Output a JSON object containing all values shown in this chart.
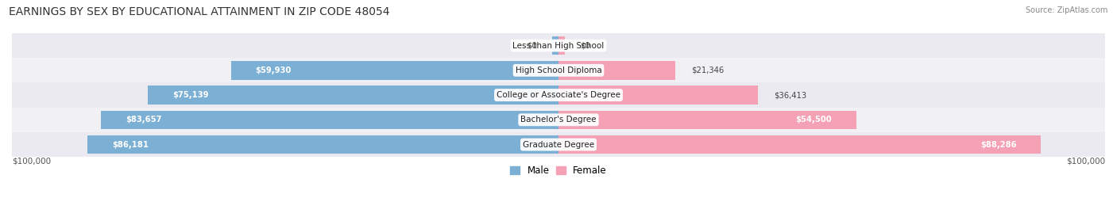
{
  "title": "EARNINGS BY SEX BY EDUCATIONAL ATTAINMENT IN ZIP CODE 48054",
  "source": "Source: ZipAtlas.com",
  "categories": [
    "Graduate Degree",
    "Bachelor's Degree",
    "College or Associate's Degree",
    "High School Diploma",
    "Less than High School"
  ],
  "male_values": [
    86181,
    83657,
    75139,
    59930,
    0
  ],
  "female_values": [
    88286,
    54500,
    36413,
    21346,
    0
  ],
  "male_color": "#7bafd4",
  "female_color": "#f4a0b5",
  "male_label": "Male",
  "female_label": "Female",
  "max_val": 100000,
  "bg_color": "#ffffff",
  "row_colors": [
    "#eaeaf0",
    "#f0f0f5"
  ],
  "x_label_left": "$100,000",
  "x_label_right": "$100,000",
  "title_fontsize": 10,
  "source_fontsize": 7,
  "tick_fontsize": 7.5,
  "bar_label_fontsize": 7.2,
  "cat_label_fontsize": 7.5
}
